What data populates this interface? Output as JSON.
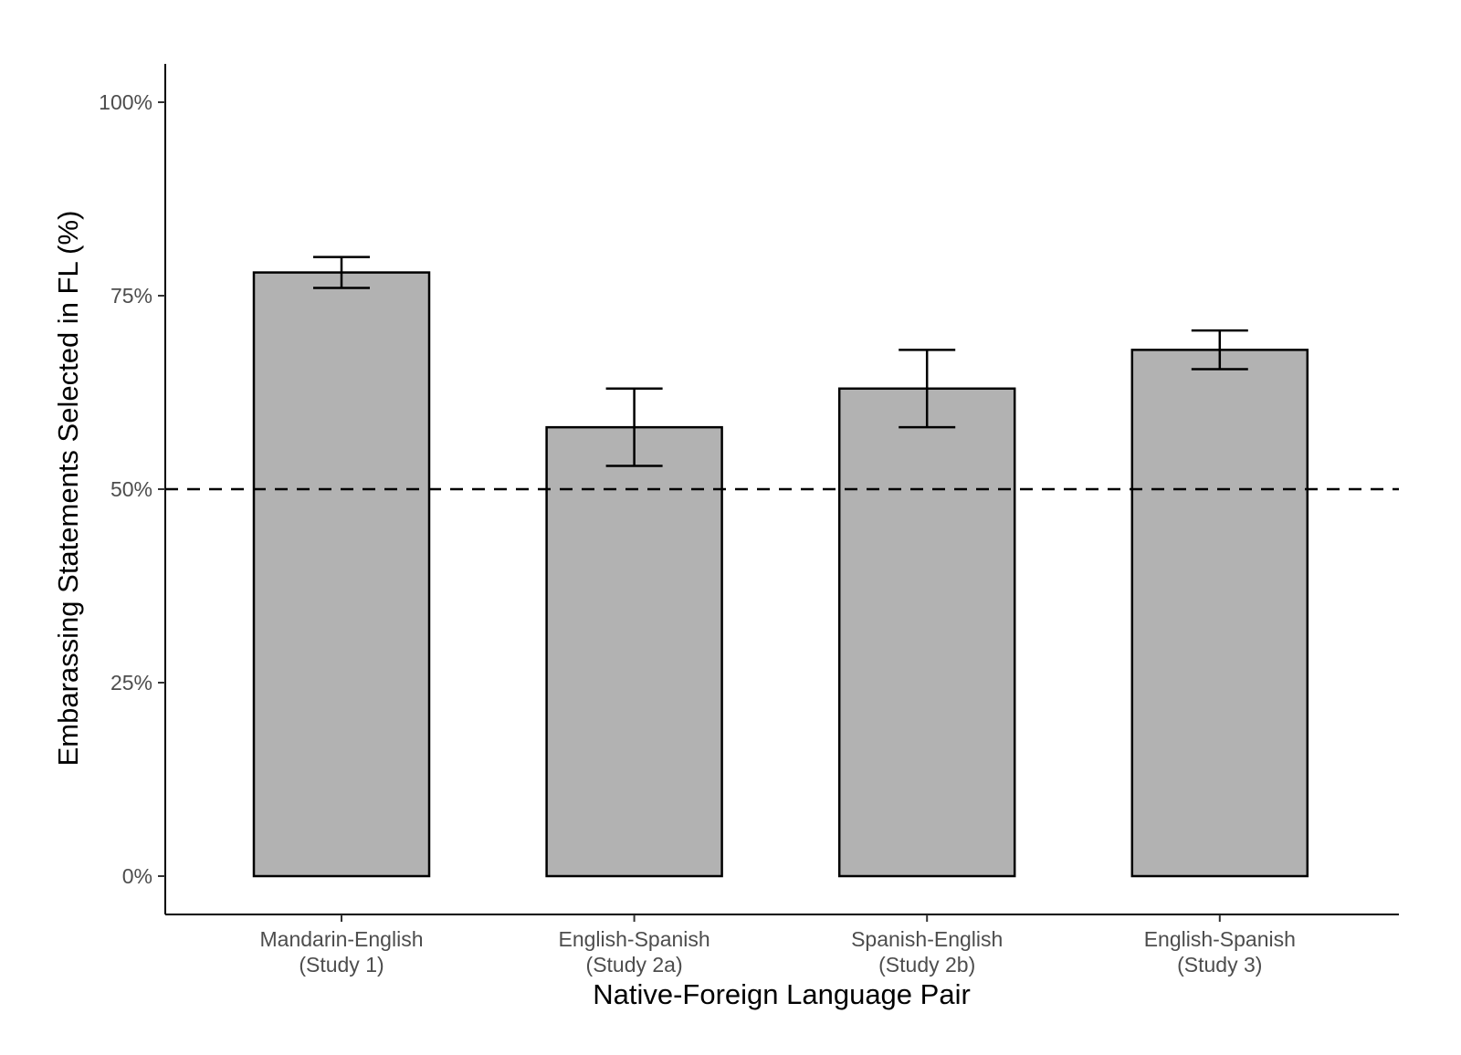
{
  "chart_data": {
    "type": "bar",
    "categories": [
      [
        "Mandarin-English",
        "(Study 1)"
      ],
      [
        "English-Spanish",
        "(Study 2a)"
      ],
      [
        "Spanish-English",
        "(Study 2b)"
      ],
      [
        "English-Spanish",
        "(Study 3)"
      ]
    ],
    "values": [
      78,
      58,
      63,
      68
    ],
    "error_bars": [
      {
        "low": 76,
        "high": 80
      },
      {
        "low": 53,
        "high": 63
      },
      {
        "low": 58,
        "high": 68
      },
      {
        "low": 65.5,
        "high": 70.5
      }
    ],
    "reference_line": {
      "y": 50,
      "style": "dashed"
    },
    "xlabel": "Native-Foreign Language Pair",
    "ylabel": "Embarassing Statements Selected in FL (%)",
    "ylim": [
      -5,
      105
    ],
    "yticks": [
      0,
      25,
      50,
      75,
      100
    ],
    "ytick_labels": [
      "0%",
      "25%",
      "50%",
      "75%",
      "100%"
    ],
    "bar_color": "#b2b2b2",
    "grid": false
  }
}
